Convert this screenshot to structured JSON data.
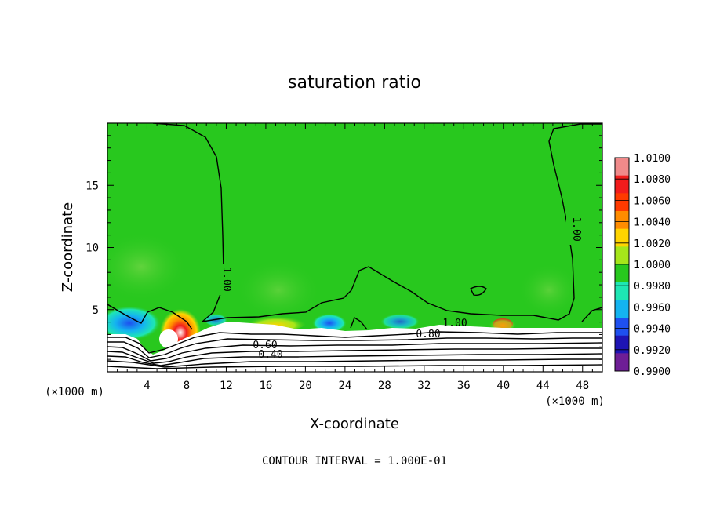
{
  "chart_data": {
    "type": "heatmap",
    "title": "saturation ratio",
    "xlabel": "X-coordinate",
    "ylabel": "Z-coordinate",
    "x_unit_label": "(×1000 m)",
    "xlim": [
      0,
      50
    ],
    "ylim": [
      0,
      20
    ],
    "x_ticks": [
      4,
      8,
      12,
      16,
      20,
      24,
      28,
      32,
      36,
      40,
      44,
      48
    ],
    "y_ticks": [
      5,
      10,
      15
    ],
    "colorbar": {
      "levels": [
        "1.0100",
        "1.0080",
        "1.0060",
        "1.0040",
        "1.0020",
        "1.0000",
        "0.9980",
        "0.9960",
        "0.9940",
        "0.9920",
        "0.9900"
      ],
      "colors": [
        "#f08a8a",
        "#f21c1c",
        "#ff3a00",
        "#ff8c00",
        "#ffd400",
        "#a6e61a",
        "#28c81e",
        "#1ee6b4",
        "#14b4f0",
        "#1e50f0",
        "#1e14b4",
        "#6e1e96"
      ]
    },
    "background_value": "1.0000",
    "contour_labels": [
      "1.00",
      "1.00",
      "1.00",
      "0.80",
      "0.60",
      "0.40"
    ],
    "footer": "CONTOUR INTERVAL = 1.000E-01"
  }
}
